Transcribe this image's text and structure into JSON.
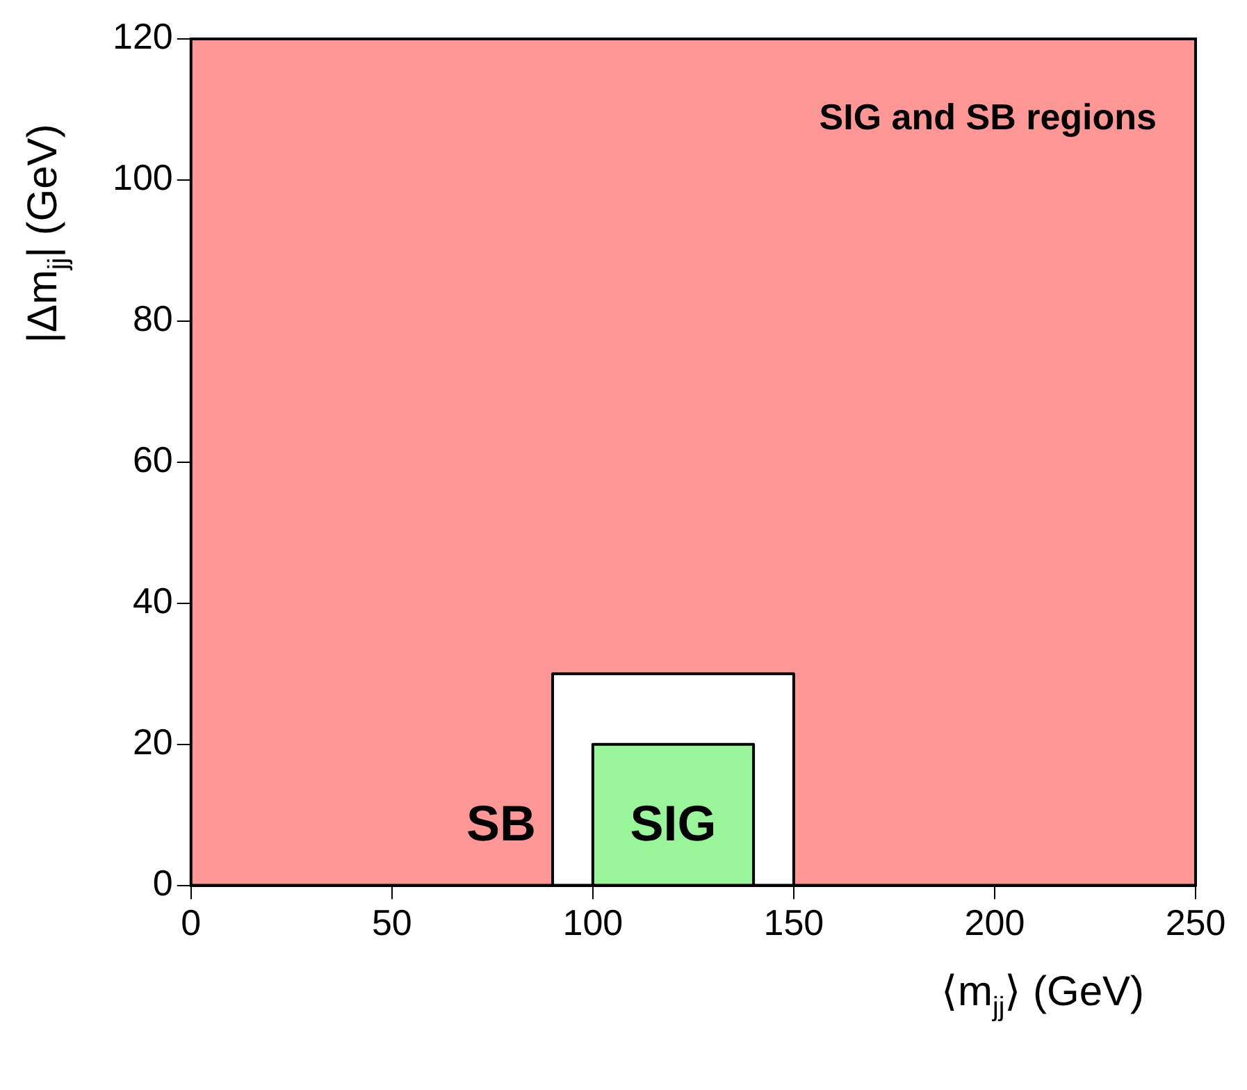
{
  "chart_data": {
    "type": "area",
    "xlabel": "⟨m$_{jj}$⟩ (GeV)",
    "ylabel": "|Δm$_{jj}$| (GeV)",
    "xlim": [
      0,
      250
    ],
    "xticks": [
      0,
      50,
      100,
      150,
      200,
      250
    ],
    "ylim": [
      0,
      120
    ],
    "yticks": [
      0,
      20,
      40,
      60,
      80,
      100,
      120
    ],
    "legend": false,
    "series": [
      {
        "color": "#ffffff",
        "x": [
          90,
          90,
          150,
          150
        ],
        "values": [
          0,
          30,
          30,
          0
        ]
      },
      {
        "color": "#99f599",
        "x": [
          100,
          100,
          140,
          140
        ],
        "values": [
          0,
          20,
          20,
          0
        ]
      }
    ],
    "annotations": [
      "SIG and SB regions",
      "SB",
      "SIG"
    ]
  }
}
